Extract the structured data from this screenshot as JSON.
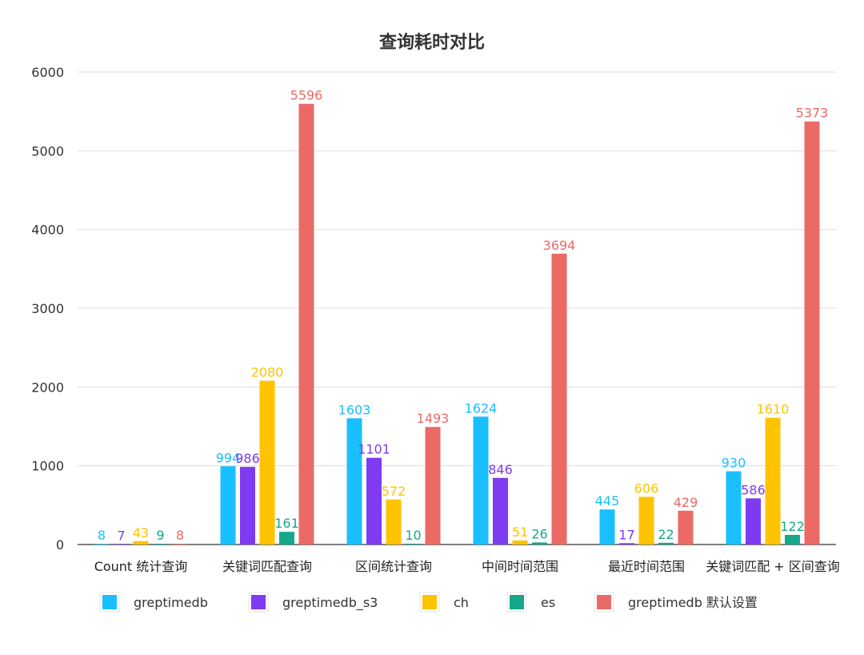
{
  "chart_data": {
    "type": "bar",
    "title": "查询耗时对比",
    "categories": [
      "Count 统计查询",
      "关键词匹配查询",
      "区间统计查询",
      "中间时间范围",
      "最近时间范围",
      "关键词匹配 + 区间查询"
    ],
    "ylim": [
      0,
      6000
    ],
    "yticks": [
      "0",
      "1000",
      "2000",
      "3000",
      "4000",
      "5000",
      "6000"
    ],
    "grid": true,
    "legend_position": "bottom",
    "series": [
      {
        "name": "greptimedb",
        "color": "#1ABFFF",
        "values": [
          8,
          994,
          1603,
          1624,
          445,
          930
        ]
      },
      {
        "name": "greptimedb_s3",
        "color": "#7E3BF2",
        "values": [
          7,
          986,
          1101,
          846,
          17,
          586
        ]
      },
      {
        "name": "ch",
        "color": "#FFC300",
        "values": [
          43,
          2080,
          572,
          51,
          606,
          1610
        ]
      },
      {
        "name": "es",
        "color": "#16A88A",
        "values": [
          9,
          161,
          10,
          26,
          22,
          122
        ]
      },
      {
        "name": "greptimedb 默认设置",
        "color": "#EC6A66",
        "values": [
          8,
          5596,
          1493,
          3694,
          429,
          5373
        ]
      }
    ]
  }
}
